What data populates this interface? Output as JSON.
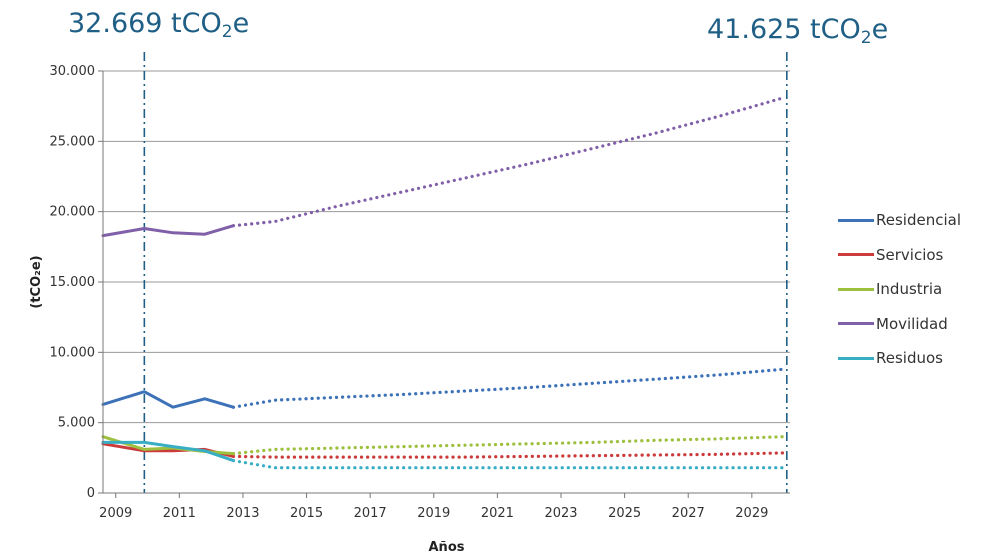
{
  "annotations": {
    "left": {
      "value": "32.669 tCO",
      "sub": "2",
      "suffix": "e",
      "year": 2009.9
    },
    "right": {
      "value": "41.625 tCO",
      "sub": "2",
      "suffix": "e",
      "year": 2030.1
    }
  },
  "colors": {
    "Residencial": "#3d72b8",
    "Servicios": "#cc3b3b",
    "Industria": "#9ec03f",
    "Movilidad": "#8060a8",
    "Residuos": "#37aec4",
    "annotation": "#1f5f86",
    "grid": "#9a9a9a"
  },
  "chart_data": {
    "type": "line",
    "xlabel": "Años",
    "ylabel": "(tCO₂e)",
    "xlim": [
      2008.6,
      2030.2
    ],
    "ylim": [
      0,
      30000
    ],
    "x_ticks": [
      2009,
      2011,
      2013,
      2015,
      2017,
      2019,
      2021,
      2023,
      2025,
      2027,
      2029
    ],
    "x_tick_labels": [
      "2009",
      "2011",
      "2013",
      "2015",
      "2017",
      "2019",
      "2021",
      "2023",
      "2025",
      "2027",
      "2029"
    ],
    "y_ticks": [
      0,
      5000,
      10000,
      15000,
      20000,
      25000,
      30000
    ],
    "y_tick_labels": [
      "0",
      "5.000",
      "10.000",
      "15.000",
      "20.000",
      "25.000",
      "30.000"
    ],
    "grid": "horizontal",
    "legend_position": "right",
    "reference_lines": [
      2009.9,
      2030.1
    ],
    "series": [
      {
        "name": "Residencial",
        "historical": {
          "x": [
            2008.6,
            2009.9,
            2010.8,
            2011.8,
            2012.7
          ],
          "y": [
            6300,
            7200,
            6100,
            6700,
            6100
          ]
        },
        "projection": {
          "x": [
            2012.7,
            2014,
            2016,
            2018,
            2020,
            2022,
            2024,
            2026,
            2028,
            2030
          ],
          "y": [
            6100,
            6600,
            6800,
            7000,
            7250,
            7500,
            7800,
            8100,
            8400,
            8800
          ]
        }
      },
      {
        "name": "Servicios",
        "historical": {
          "x": [
            2008.6,
            2009.9,
            2010.8,
            2011.8,
            2012.7
          ],
          "y": [
            3500,
            3000,
            3000,
            3100,
            2600
          ]
        },
        "projection": {
          "x": [
            2012.7,
            2014,
            2016,
            2018,
            2020,
            2022,
            2024,
            2026,
            2028,
            2030
          ],
          "y": [
            2600,
            2550,
            2550,
            2550,
            2550,
            2600,
            2650,
            2700,
            2750,
            2850
          ]
        }
      },
      {
        "name": "Industria",
        "historical": {
          "x": [
            2008.6,
            2009.9,
            2010.8,
            2011.8,
            2012.7
          ],
          "y": [
            4000,
            3100,
            3200,
            2950,
            2800
          ]
        },
        "projection": {
          "x": [
            2012.7,
            2014,
            2016,
            2018,
            2020,
            2022,
            2024,
            2026,
            2028,
            2030
          ],
          "y": [
            2800,
            3100,
            3200,
            3300,
            3400,
            3500,
            3600,
            3750,
            3850,
            4000
          ]
        }
      },
      {
        "name": "Movilidad",
        "historical": {
          "x": [
            2008.6,
            2009.9,
            2010.8,
            2011.8,
            2012.7
          ],
          "y": [
            18300,
            18800,
            18500,
            18400,
            19000
          ]
        },
        "projection": {
          "x": [
            2012.7,
            2014,
            2016,
            2018,
            2020,
            2022,
            2024,
            2026,
            2028,
            2030
          ],
          "y": [
            19000,
            19300,
            20400,
            21400,
            22400,
            23400,
            24500,
            25600,
            26800,
            28100
          ]
        }
      },
      {
        "name": "Residuos",
        "historical": {
          "x": [
            2008.6,
            2009.9,
            2010.8,
            2011.8,
            2012.7
          ],
          "y": [
            3600,
            3600,
            3300,
            3000,
            2300
          ]
        },
        "projection": {
          "x": [
            2012.7,
            2014,
            2016,
            2018,
            2020,
            2022,
            2024,
            2026,
            2028,
            2030
          ],
          "y": [
            2300,
            1800,
            1800,
            1800,
            1800,
            1800,
            1800,
            1800,
            1800,
            1800
          ]
        }
      }
    ]
  }
}
